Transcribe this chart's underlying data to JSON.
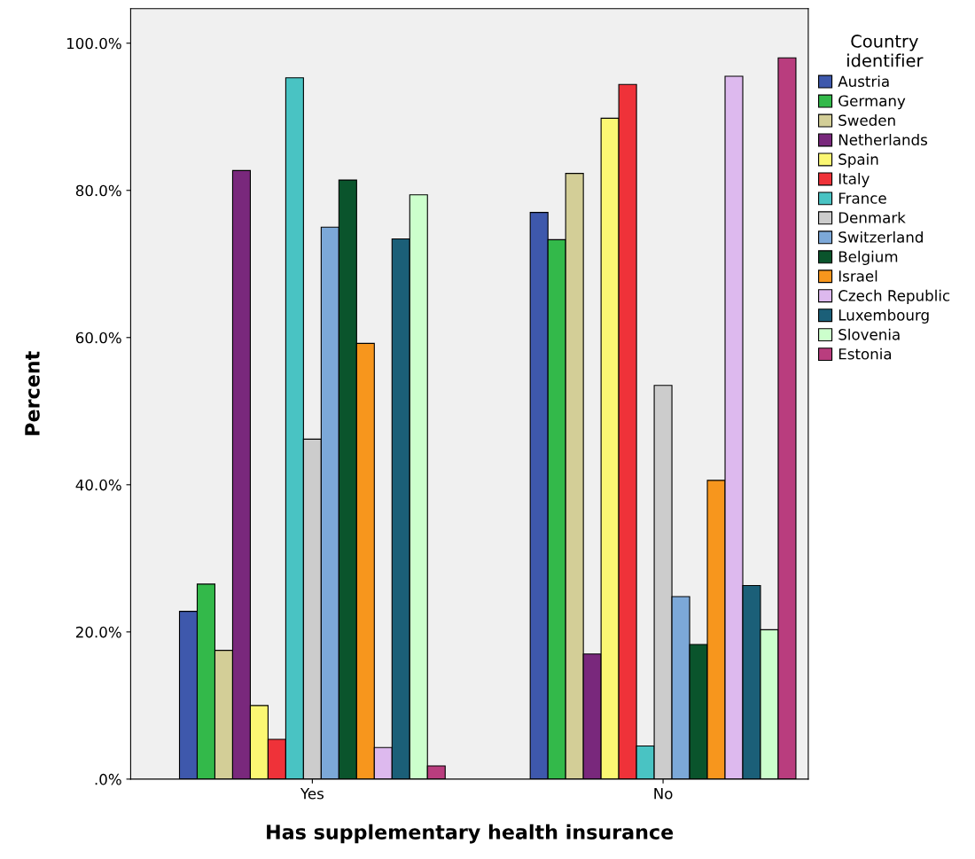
{
  "chart_data": {
    "type": "bar",
    "xlabel": "Has supplementary health insurance",
    "ylabel": "Percent",
    "legend_title": "Country identifier",
    "categories": [
      "Yes",
      "No"
    ],
    "series": [
      {
        "name": "Austria",
        "color": "#3e58ac",
        "values": [
          22.8,
          77.0
        ]
      },
      {
        "name": "Germany",
        "color": "#33b94a",
        "values": [
          26.5,
          73.3
        ]
      },
      {
        "name": "Sweden",
        "color": "#d3ce97",
        "values": [
          17.5,
          82.3
        ]
      },
      {
        "name": "Netherlands",
        "color": "#79287c",
        "values": [
          82.7,
          17.0
        ]
      },
      {
        "name": "Spain",
        "color": "#fbf773",
        "values": [
          10.0,
          89.8
        ]
      },
      {
        "name": "Italy",
        "color": "#ef3239",
        "values": [
          5.4,
          94.4
        ]
      },
      {
        "name": "France",
        "color": "#49c3c3",
        "values": [
          95.3,
          4.5
        ]
      },
      {
        "name": "Denmark",
        "color": "#cccccc",
        "values": [
          46.2,
          53.5
        ]
      },
      {
        "name": "Switzerland",
        "color": "#7ca8d8",
        "values": [
          75.0,
          24.8
        ]
      },
      {
        "name": "Belgium",
        "color": "#0a542c",
        "values": [
          81.4,
          18.3
        ]
      },
      {
        "name": "Israel",
        "color": "#f7961d",
        "values": [
          59.2,
          40.6
        ]
      },
      {
        "name": "Czech Republic",
        "color": "#ddb9ee",
        "values": [
          4.3,
          95.5
        ]
      },
      {
        "name": "Luxembourg",
        "color": "#1b5f78",
        "values": [
          73.4,
          26.3
        ]
      },
      {
        "name": "Slovenia",
        "color": "#ccffcc",
        "values": [
          79.4,
          20.3
        ]
      },
      {
        "name": "Estonia",
        "color": "#b93d7e",
        "values": [
          1.8,
          98.0
        ]
      }
    ],
    "ylim": [
      0,
      104.7
    ],
    "yticks": [
      {
        "value": 0,
        "label": ".0%"
      },
      {
        "value": 20,
        "label": "20.0%"
      },
      {
        "value": 40,
        "label": "40.0%"
      },
      {
        "value": 60,
        "label": "60.0%"
      },
      {
        "value": 80,
        "label": "80.0%"
      },
      {
        "value": 100,
        "label": "100.0%"
      }
    ],
    "grid": false,
    "legend": "right"
  }
}
